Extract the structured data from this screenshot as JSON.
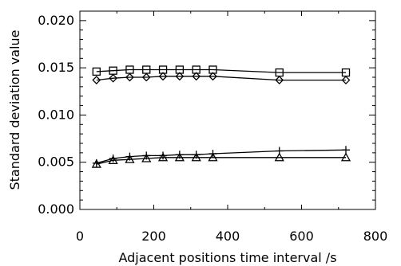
{
  "chart_data": {
    "type": "line",
    "title": "",
    "xlabel": "Adjacent positions time interval /s",
    "ylabel": "Standard deviation value",
    "xlim": [
      0,
      800
    ],
    "ylim": [
      0.0,
      0.021
    ],
    "x_ticks": [
      0,
      200,
      400,
      600,
      800
    ],
    "x_tick_labels": [
      "0",
      "200",
      "400",
      "600",
      "800"
    ],
    "y_ticks": [
      0.0,
      0.005,
      0.01,
      0.015,
      0.02
    ],
    "y_tick_labels": [
      "0.000",
      "0.005",
      "0.010",
      "0.015",
      "0.020"
    ],
    "grid": false,
    "legend": "none",
    "series": [
      {
        "marker": "square",
        "x": [
          45,
          90,
          135,
          180,
          225,
          270,
          315,
          360,
          540,
          720
        ],
        "y": [
          0.0146,
          0.0147,
          0.0148,
          0.0148,
          0.0148,
          0.0148,
          0.0148,
          0.0148,
          0.0145,
          0.0145
        ]
      },
      {
        "marker": "diamond",
        "x": [
          45,
          90,
          135,
          180,
          225,
          270,
          315,
          360,
          540,
          720
        ],
        "y": [
          0.0137,
          0.0139,
          0.014,
          0.014,
          0.0141,
          0.0141,
          0.0141,
          0.0141,
          0.0137,
          0.0137
        ]
      },
      {
        "marker": "plus",
        "x": [
          45,
          90,
          135,
          180,
          225,
          270,
          315,
          360,
          540,
          720
        ],
        "y": [
          0.0049,
          0.0054,
          0.0056,
          0.0057,
          0.0057,
          0.0058,
          0.0058,
          0.0059,
          0.0062,
          0.0063
        ]
      },
      {
        "marker": "triangle",
        "x": [
          45,
          90,
          135,
          180,
          225,
          270,
          315,
          360,
          540,
          720
        ],
        "y": [
          0.0048,
          0.0052,
          0.0053,
          0.0054,
          0.0055,
          0.0055,
          0.0055,
          0.0055,
          0.0055,
          0.0055
        ]
      }
    ]
  }
}
